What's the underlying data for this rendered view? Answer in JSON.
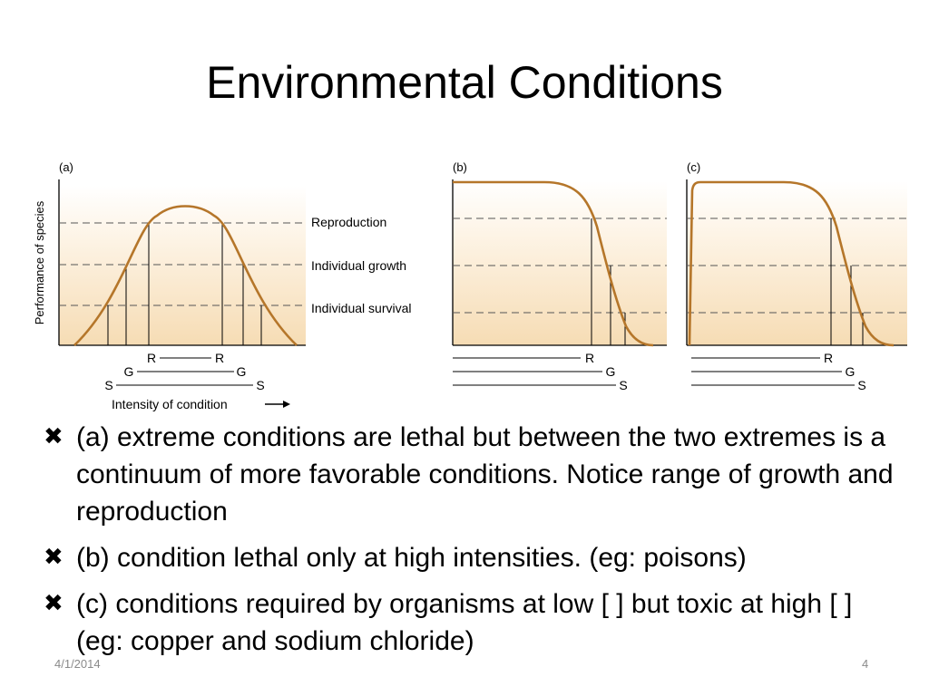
{
  "slide": {
    "title": "Environmental Conditions",
    "date": "4/1/2014",
    "page_number": "4"
  },
  "figure": {
    "panel_a": {
      "label": "(a)",
      "y_axis_label": "Performance of species",
      "level_labels": [
        "Reproduction",
        "Individual growth",
        "Individual survival"
      ],
      "range_labels": [
        "R",
        "R",
        "G",
        "G",
        "S",
        "S"
      ],
      "x_axis_label": "Intensity of condition"
    },
    "panel_b": {
      "label": "(b)",
      "range_labels": [
        "R",
        "G",
        "S"
      ]
    },
    "panel_c": {
      "label": "(c)",
      "range_labels": [
        "R",
        "G",
        "S"
      ]
    },
    "colors": {
      "curve": "#b5762a",
      "fill_top": "#fdf3e4",
      "fill_bottom": "#f6dcb4"
    }
  },
  "bullets": {
    "icon": "heavy-ballot-x-icon",
    "items": [
      "(a) extreme conditions are lethal but between the two extremes is a continuum of more favorable conditions. Notice range of growth and reproduction",
      "(b) condition lethal only at high intensities. (eg: poisons)",
      "(c) conditions required by organisms at low [ ] but toxic at high [ ] (eg: copper and sodium chloride)"
    ]
  }
}
